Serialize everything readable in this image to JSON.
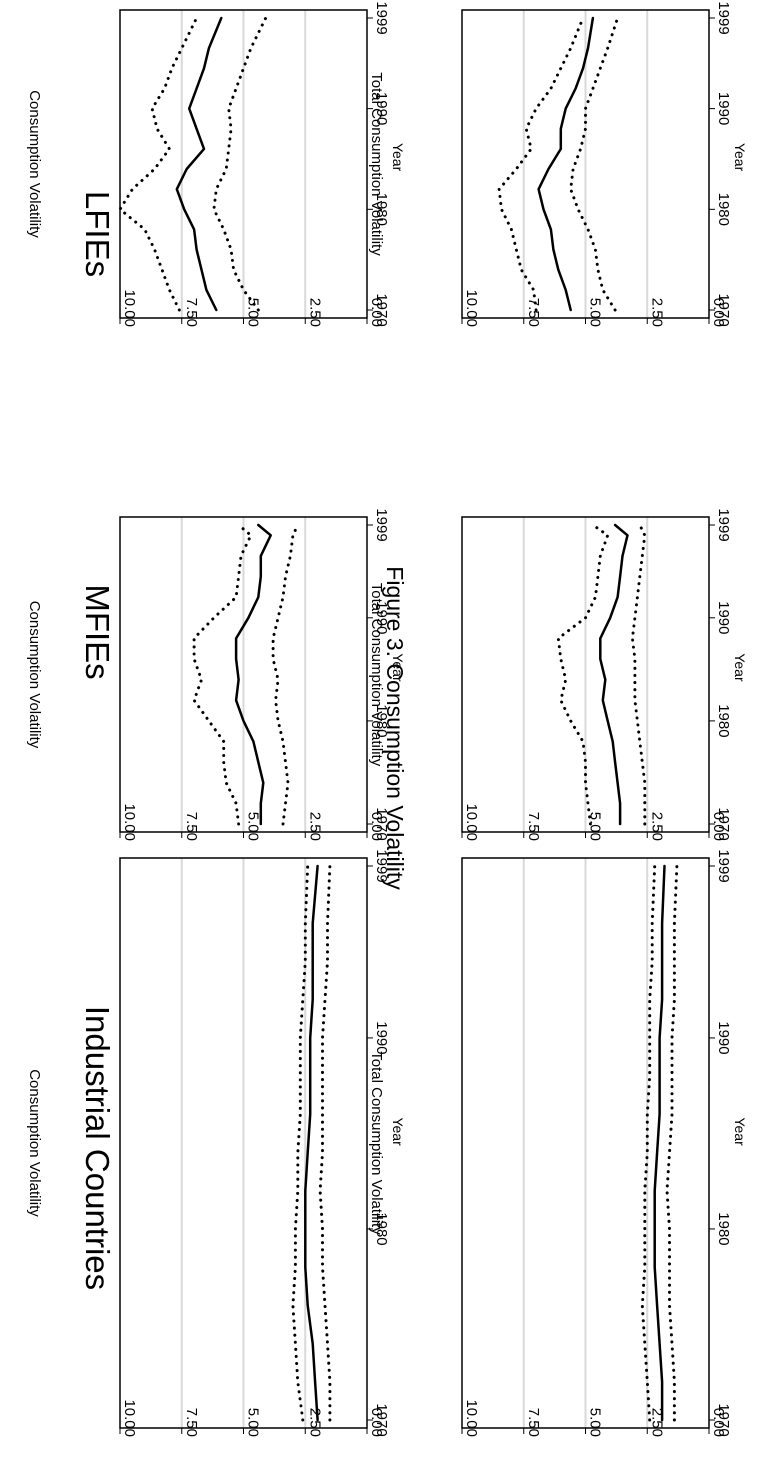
{
  "figure": {
    "title": "Figure 3.  Consumption Volatility"
  },
  "x_axis": {
    "label": "Year",
    "ticks": [
      "1970",
      "1980",
      "1990",
      "1999"
    ]
  },
  "y_axis": {
    "ticks": [
      "10.00",
      "7.50",
      "5.00",
      "2.50",
      "0.00"
    ]
  },
  "groups": [
    {
      "title": "Industrial Countries"
    },
    {
      "title": "MFIEs"
    },
    {
      "title": "LFIEs"
    }
  ],
  "row_labels": [
    "Consumption Volatility",
    "Total Consumption Volatility"
  ],
  "style": {
    "gridline_color": "#d9d9d9",
    "line_color": "#000000",
    "orientation": "rotated 90 degrees clockwise"
  },
  "chart_data": [
    {
      "type": "line",
      "group": "Industrial Countries",
      "ylabel": "Consumption Volatility",
      "xlabel": "Year",
      "xlim": [
        1970,
        1999
      ],
      "ylim": [
        0,
        10
      ],
      "grid": true,
      "x": [
        1970,
        1972,
        1974,
        1976,
        1978,
        1980,
        1982,
        1984,
        1986,
        1988,
        1990,
        1992,
        1994,
        1996,
        1999
      ],
      "series": [
        {
          "style": "dotted",
          "values": [
            1.5,
            1.5,
            1.6,
            1.7,
            1.8,
            1.8,
            1.9,
            1.8,
            1.8,
            1.8,
            1.8,
            1.7,
            1.6,
            1.6,
            1.5
          ]
        },
        {
          "style": "solid",
          "values": [
            2.0,
            2.1,
            2.2,
            2.4,
            2.5,
            2.5,
            2.5,
            2.4,
            2.3,
            2.3,
            2.3,
            2.2,
            2.2,
            2.2,
            2.0
          ]
        },
        {
          "style": "dotted",
          "values": [
            2.6,
            2.8,
            2.9,
            3.0,
            2.9,
            2.9,
            2.8,
            2.8,
            2.7,
            2.7,
            2.7,
            2.6,
            2.5,
            2.5,
            2.4
          ]
        }
      ]
    },
    {
      "type": "line",
      "group": "MFIEs",
      "ylabel": "Consumption Volatility",
      "xlabel": "Year",
      "xlim": [
        1970,
        1999
      ],
      "ylim": [
        0,
        10
      ],
      "grid": true,
      "x": [
        1970,
        1972,
        1974,
        1976,
        1978,
        1980,
        1982,
        1984,
        1986,
        1988,
        1990,
        1992,
        1994,
        1996,
        1998,
        1999
      ],
      "series": [
        {
          "style": "dotted",
          "values": [
            3.4,
            3.3,
            3.2,
            3.3,
            3.4,
            3.6,
            3.7,
            3.6,
            3.8,
            3.8,
            3.6,
            3.4,
            3.3,
            3.1,
            3.0,
            2.8
          ]
        },
        {
          "style": "solid",
          "values": [
            4.3,
            4.3,
            4.2,
            4.4,
            4.6,
            5.0,
            5.3,
            5.2,
            5.3,
            5.3,
            4.8,
            4.4,
            4.3,
            4.3,
            3.9,
            4.4
          ]
        },
        {
          "style": "dotted",
          "values": [
            5.2,
            5.3,
            5.7,
            5.8,
            5.8,
            6.4,
            7.0,
            6.7,
            7.0,
            7.0,
            6.2,
            5.3,
            5.2,
            5.1,
            4.7,
            5.2
          ]
        }
      ]
    },
    {
      "type": "line",
      "group": "LFIEs",
      "ylabel": "Consumption Volatility",
      "xlabel": "Year",
      "xlim": [
        1970,
        1999
      ],
      "ylim": [
        0,
        10
      ],
      "grid": true,
      "x": [
        1970,
        1972,
        1974,
        1976,
        1978,
        1980,
        1982,
        1984,
        1986,
        1988,
        1990,
        1992,
        1994,
        1996,
        1999
      ],
      "series": [
        {
          "style": "dotted",
          "values": [
            4.4,
            5.0,
            5.4,
            5.5,
            5.8,
            6.2,
            6.1,
            5.7,
            5.6,
            5.5,
            5.6,
            5.3,
            5.0,
            4.7,
            4.1
          ]
        },
        {
          "style": "solid",
          "values": [
            6.1,
            6.5,
            6.7,
            6.9,
            7.0,
            7.4,
            7.7,
            7.3,
            6.6,
            6.9,
            7.2,
            6.9,
            6.6,
            6.4,
            5.9
          ]
        },
        {
          "style": "dotted",
          "values": [
            7.6,
            8.0,
            8.3,
            8.6,
            9.0,
            10.0,
            9.5,
            8.6,
            8.0,
            8.5,
            8.7,
            8.2,
            7.9,
            7.5,
            6.9
          ]
        }
      ]
    },
    {
      "type": "line",
      "group": "Industrial Countries",
      "ylabel": "Total Consumption Volatility",
      "xlabel": "Year",
      "xlim": [
        1970,
        1999
      ],
      "ylim": [
        0,
        10
      ],
      "grid": true,
      "x": [
        1970,
        1972,
        1974,
        1976,
        1978,
        1980,
        1982,
        1984,
        1986,
        1988,
        1990,
        1992,
        1994,
        1996,
        1999
      ],
      "series": [
        {
          "style": "dotted",
          "values": [
            1.4,
            1.4,
            1.5,
            1.6,
            1.6,
            1.6,
            1.7,
            1.6,
            1.5,
            1.5,
            1.5,
            1.4,
            1.4,
            1.4,
            1.3
          ]
        },
        {
          "style": "solid",
          "values": [
            1.9,
            1.9,
            2.0,
            2.1,
            2.2,
            2.2,
            2.2,
            2.1,
            2.0,
            2.0,
            2.0,
            1.9,
            1.9,
            1.9,
            1.8
          ]
        },
        {
          "style": "dotted",
          "values": [
            2.4,
            2.5,
            2.6,
            2.7,
            2.6,
            2.6,
            2.6,
            2.5,
            2.5,
            2.4,
            2.4,
            2.4,
            2.3,
            2.3,
            2.2
          ]
        }
      ]
    },
    {
      "type": "line",
      "group": "MFIEs",
      "ylabel": "Total Consumption Volatility",
      "xlabel": "Year",
      "xlim": [
        1970,
        1999
      ],
      "ylim": [
        0,
        10
      ],
      "grid": true,
      "x": [
        1970,
        1972,
        1974,
        1976,
        1978,
        1980,
        1982,
        1984,
        1986,
        1988,
        1990,
        1992,
        1994,
        1996,
        1998,
        1999
      ],
      "series": [
        {
          "style": "dotted",
          "values": [
            2.6,
            2.6,
            2.6,
            2.7,
            2.8,
            2.9,
            3.0,
            3.0,
            3.0,
            3.1,
            3.0,
            2.9,
            2.8,
            2.7,
            2.6,
            2.8
          ]
        },
        {
          "style": "solid",
          "values": [
            3.6,
            3.6,
            3.7,
            3.8,
            3.9,
            4.1,
            4.3,
            4.2,
            4.4,
            4.4,
            4.0,
            3.7,
            3.6,
            3.5,
            3.3,
            3.8
          ]
        },
        {
          "style": "dotted",
          "values": [
            4.8,
            4.9,
            5.0,
            5.0,
            5.1,
            5.6,
            6.0,
            5.8,
            6.0,
            6.1,
            5.0,
            4.6,
            4.5,
            4.4,
            4.1,
            4.7
          ]
        }
      ]
    },
    {
      "type": "line",
      "group": "LFIEs",
      "ylabel": "Total Consumption Volatility",
      "xlabel": "Year",
      "xlim": [
        1970,
        1999
      ],
      "ylim": [
        0,
        10
      ],
      "grid": true,
      "x": [
        1970,
        1972,
        1974,
        1976,
        1978,
        1980,
        1982,
        1984,
        1986,
        1988,
        1990,
        1992,
        1994,
        1996,
        1999
      ],
      "series": [
        {
          "style": "dotted",
          "values": [
            3.8,
            4.3,
            4.5,
            4.6,
            4.9,
            5.3,
            5.6,
            5.5,
            5.2,
            5.0,
            5.0,
            4.7,
            4.4,
            4.1,
            3.7
          ]
        },
        {
          "style": "solid",
          "values": [
            5.6,
            5.8,
            6.1,
            6.3,
            6.4,
            6.7,
            6.9,
            6.5,
            6.0,
            6.0,
            5.8,
            5.4,
            5.1,
            4.9,
            4.7
          ]
        },
        {
          "style": "dotted",
          "values": [
            7.0,
            7.1,
            7.6,
            7.8,
            8.0,
            8.4,
            8.5,
            7.8,
            7.2,
            7.4,
            7.0,
            6.4,
            6.0,
            5.6,
            5.1
          ]
        }
      ]
    }
  ]
}
